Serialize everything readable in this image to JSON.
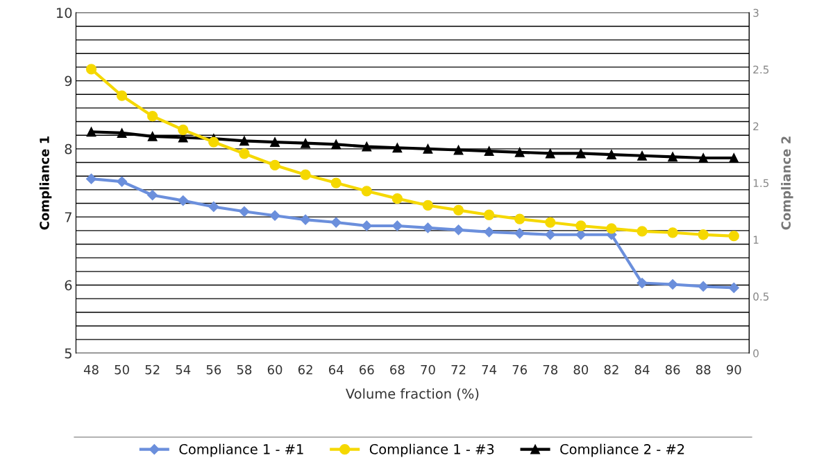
{
  "chart_data": {
    "type": "line",
    "xlabel": "Volume fraction (%)",
    "ylabel": "Compliance 1",
    "y2label": "Compliance 2",
    "categories": [
      "48",
      "50",
      "52",
      "54",
      "56",
      "58",
      "60",
      "62",
      "64",
      "66",
      "68",
      "70",
      "72",
      "74",
      "76",
      "78",
      "80",
      "82",
      "84",
      "86",
      "88",
      "90"
    ],
    "series": [
      {
        "name": "Compliance 1 - #1",
        "color": "#6b8fdc",
        "marker": "diamond",
        "values": [
          7.56,
          7.52,
          7.32,
          7.24,
          7.15,
          7.08,
          7.02,
          6.96,
          6.92,
          6.87,
          6.87,
          6.84,
          6.81,
          6.78,
          6.76,
          6.74,
          6.74,
          6.74,
          6.03,
          6.01,
          5.98,
          5.96
        ]
      },
      {
        "name": "Compliance 1 - #3",
        "color": "#f5d800",
        "marker": "circle",
        "values": [
          9.17,
          8.78,
          8.48,
          8.28,
          8.1,
          7.93,
          7.76,
          7.62,
          7.5,
          7.38,
          7.27,
          7.17,
          7.1,
          7.03,
          6.97,
          6.92,
          6.87,
          6.83,
          6.79,
          6.77,
          6.74,
          6.72
        ]
      },
      {
        "name": "Compliance 2 - #2",
        "color": "#000000",
        "marker": "triangle",
        "axis": "y2",
        "values": [
          1.95,
          1.94,
          1.91,
          1.9,
          1.89,
          1.87,
          1.86,
          1.85,
          1.84,
          1.82,
          1.81,
          1.8,
          1.79,
          1.78,
          1.77,
          1.76,
          1.76,
          1.75,
          1.74,
          1.73,
          1.72,
          1.72
        ]
      }
    ],
    "ylim": [
      5,
      10
    ],
    "yticks": [
      5,
      {
        "value": 5.2,
        "label": null
      },
      {
        "value": 5.4,
        "label": null
      },
      {
        "value": 5.6,
        "label": null
      },
      {
        "value": 5.8,
        "label": null
      },
      6,
      {
        "value": 6.2,
        "label": null
      },
      {
        "value": 6.4,
        "label": null
      },
      {
        "value": 6.6,
        "label": null
      },
      {
        "value": 6.8,
        "label": null
      },
      7,
      {
        "value": 7.2,
        "label": null
      },
      {
        "value": 7.4,
        "label": null
      },
      {
        "value": 7.6,
        "label": null
      },
      {
        "value": 7.8,
        "label": null
      },
      8,
      {
        "value": 8.2,
        "label": null
      },
      {
        "value": 8.4,
        "label": null
      },
      {
        "value": 8.6,
        "label": null
      },
      {
        "value": 8.8,
        "label": null
      },
      9,
      {
        "value": 9.2,
        "label": null
      },
      {
        "value": 9.4,
        "label": null
      },
      {
        "value": 9.6,
        "label": null
      },
      {
        "value": 9.8,
        "label": null
      },
      10
    ],
    "y2lim": [
      0,
      3
    ],
    "y2ticks": [
      0,
      0.5,
      1,
      1.5,
      2,
      2.5,
      3
    ],
    "grid": "y",
    "legend": "bottom",
    "line_style": "solid"
  }
}
